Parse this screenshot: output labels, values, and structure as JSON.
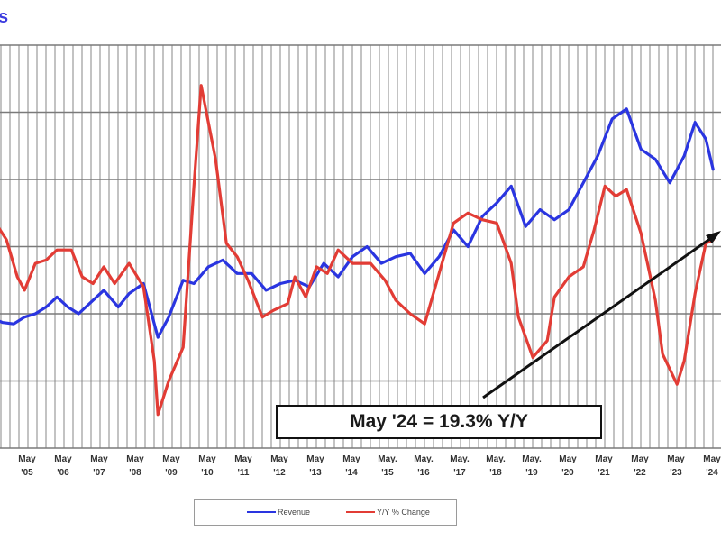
{
  "title_fragment": "s",
  "chart_data": {
    "type": "line",
    "title": "",
    "xlabel": "",
    "ylabel": "",
    "grid": true,
    "legend_position": "bottom",
    "x_tick_labels": [
      {
        "line1": "May",
        "line2": "'05"
      },
      {
        "line1": "May",
        "line2": "'06"
      },
      {
        "line1": "May",
        "line2": "'07"
      },
      {
        "line1": "May",
        "line2": "'08"
      },
      {
        "line1": "May",
        "line2": "'09"
      },
      {
        "line1": "May",
        "line2": "'10"
      },
      {
        "line1": "May",
        "line2": "'11"
      },
      {
        "line1": "May",
        "line2": "'12"
      },
      {
        "line1": "May",
        "line2": "'13"
      },
      {
        "line1": "May",
        "line2": "'14"
      },
      {
        "line1": "May.",
        "line2": "'15"
      },
      {
        "line1": "May.",
        "line2": "'16"
      },
      {
        "line1": "May.",
        "line2": "'17"
      },
      {
        "line1": "May.",
        "line2": "'18"
      },
      {
        "line1": "May.",
        "line2": "'19"
      },
      {
        "line1": "May",
        "line2": "'20"
      },
      {
        "line1": "May",
        "line2": "'21"
      },
      {
        "line1": "May",
        "line2": "'22"
      },
      {
        "line1": "May",
        "line2": "'23"
      },
      {
        "line1": "May",
        "line2": "'24"
      }
    ],
    "x_range": [
      "2004-05",
      "2024-05"
    ],
    "y_scale_note": "No y-axis tick labels visible; values below are relative positions (0 = bottom gridline, 6 = top gridline).",
    "series": [
      {
        "name": "Revenue",
        "color": "#2a35e0",
        "points": [
          [
            2004.4,
            1.93
          ],
          [
            2004.7,
            1.87
          ],
          [
            2005.0,
            1.85
          ],
          [
            2005.3,
            1.95
          ],
          [
            2005.6,
            2.0
          ],
          [
            2005.9,
            2.1
          ],
          [
            2006.2,
            2.25
          ],
          [
            2006.5,
            2.1
          ],
          [
            2006.8,
            2.0
          ],
          [
            2007.2,
            2.2
          ],
          [
            2007.5,
            2.35
          ],
          [
            2007.9,
            2.1
          ],
          [
            2008.2,
            2.3
          ],
          [
            2008.6,
            2.45
          ],
          [
            2009.0,
            1.65
          ],
          [
            2009.3,
            1.95
          ],
          [
            2009.7,
            2.5
          ],
          [
            2010.0,
            2.45
          ],
          [
            2010.4,
            2.7
          ],
          [
            2010.8,
            2.8
          ],
          [
            2011.2,
            2.6
          ],
          [
            2011.6,
            2.6
          ],
          [
            2012.0,
            2.35
          ],
          [
            2012.4,
            2.45
          ],
          [
            2012.8,
            2.5
          ],
          [
            2013.2,
            2.4
          ],
          [
            2013.6,
            2.75
          ],
          [
            2014.0,
            2.55
          ],
          [
            2014.4,
            2.85
          ],
          [
            2014.8,
            3.0
          ],
          [
            2015.2,
            2.75
          ],
          [
            2015.6,
            2.85
          ],
          [
            2016.0,
            2.9
          ],
          [
            2016.4,
            2.6
          ],
          [
            2016.8,
            2.85
          ],
          [
            2017.2,
            3.25
          ],
          [
            2017.6,
            3.0
          ],
          [
            2018.0,
            3.45
          ],
          [
            2018.4,
            3.65
          ],
          [
            2018.8,
            3.9
          ],
          [
            2019.2,
            3.3
          ],
          [
            2019.6,
            3.55
          ],
          [
            2020.0,
            3.4
          ],
          [
            2020.4,
            3.55
          ],
          [
            2020.8,
            3.95
          ],
          [
            2021.2,
            4.35
          ],
          [
            2021.6,
            4.9
          ],
          [
            2022.0,
            5.05
          ],
          [
            2022.4,
            4.45
          ],
          [
            2022.8,
            4.3
          ],
          [
            2023.2,
            3.95
          ],
          [
            2023.6,
            4.35
          ],
          [
            2023.9,
            4.85
          ],
          [
            2024.2,
            4.6
          ],
          [
            2024.4,
            4.15
          ]
        ]
      },
      {
        "name": "Y/Y % Change",
        "color": "#e23c35",
        "points": [
          [
            2004.3,
            4.05
          ],
          [
            2004.5,
            3.35
          ],
          [
            2004.8,
            3.1
          ],
          [
            2005.1,
            2.55
          ],
          [
            2005.3,
            2.35
          ],
          [
            2005.6,
            2.75
          ],
          [
            2005.9,
            2.8
          ],
          [
            2006.2,
            2.95
          ],
          [
            2006.6,
            2.95
          ],
          [
            2006.9,
            2.55
          ],
          [
            2007.2,
            2.45
          ],
          [
            2007.5,
            2.7
          ],
          [
            2007.8,
            2.45
          ],
          [
            2008.2,
            2.75
          ],
          [
            2008.6,
            2.4
          ],
          [
            2008.9,
            1.3
          ],
          [
            2009.0,
            0.5
          ],
          [
            2009.3,
            1.0
          ],
          [
            2009.7,
            1.5
          ],
          [
            2010.0,
            3.9
          ],
          [
            2010.2,
            5.4
          ],
          [
            2010.6,
            4.3
          ],
          [
            2010.9,
            3.05
          ],
          [
            2011.2,
            2.85
          ],
          [
            2011.5,
            2.5
          ],
          [
            2011.9,
            1.95
          ],
          [
            2012.2,
            2.05
          ],
          [
            2012.6,
            2.15
          ],
          [
            2012.8,
            2.55
          ],
          [
            2013.1,
            2.25
          ],
          [
            2013.4,
            2.7
          ],
          [
            2013.7,
            2.6
          ],
          [
            2014.0,
            2.95
          ],
          [
            2014.4,
            2.75
          ],
          [
            2014.9,
            2.75
          ],
          [
            2015.3,
            2.5
          ],
          [
            2015.6,
            2.2
          ],
          [
            2016.0,
            2.0
          ],
          [
            2016.4,
            1.85
          ],
          [
            2016.8,
            2.6
          ],
          [
            2017.2,
            3.35
          ],
          [
            2017.6,
            3.5
          ],
          [
            2018.0,
            3.4
          ],
          [
            2018.4,
            3.35
          ],
          [
            2018.8,
            2.75
          ],
          [
            2019.0,
            1.95
          ],
          [
            2019.4,
            1.35
          ],
          [
            2019.8,
            1.6
          ],
          [
            2020.0,
            2.25
          ],
          [
            2020.4,
            2.55
          ],
          [
            2020.8,
            2.7
          ],
          [
            2021.1,
            3.25
          ],
          [
            2021.4,
            3.9
          ],
          [
            2021.7,
            3.75
          ],
          [
            2022.0,
            3.85
          ],
          [
            2022.4,
            3.2
          ],
          [
            2022.8,
            2.2
          ],
          [
            2023.0,
            1.4
          ],
          [
            2023.4,
            0.95
          ],
          [
            2023.6,
            1.3
          ],
          [
            2023.9,
            2.3
          ],
          [
            2024.2,
            3.05
          ],
          [
            2024.4,
            3.1
          ]
        ]
      }
    ],
    "annotation": {
      "text": "May '24 = 19.3% Y/Y",
      "arrow_target": "Y/Y % Change at May '24"
    }
  },
  "legend": {
    "items": [
      {
        "label": "Revenue",
        "color": "#2a35e0"
      },
      {
        "label": "Y/Y % Change",
        "color": "#e23c35"
      }
    ]
  }
}
